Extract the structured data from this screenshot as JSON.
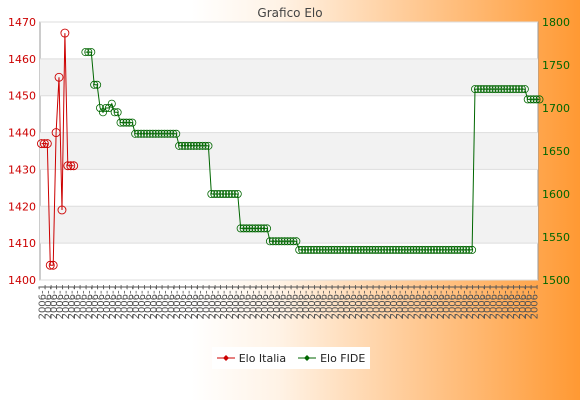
{
  "chart_data": {
    "type": "line",
    "title": "Grafico Elo",
    "xlabel": "",
    "y_left": {
      "ylim": [
        1400,
        1470
      ],
      "ticks": [
        1400,
        1410,
        1420,
        1430,
        1440,
        1450,
        1460,
        1470
      ],
      "color": "#cc0000"
    },
    "y_right": {
      "ylim": [
        1500,
        1800
      ],
      "ticks": [
        1500,
        1550,
        1600,
        1650,
        1700,
        1750,
        1800
      ],
      "color": "#006600"
    },
    "x_count": 170,
    "x_tick_text": "2006-1",
    "grid": true,
    "legend_position": "bottom",
    "series": [
      {
        "name": "Elo Italia",
        "axis": "left",
        "color": "#cc0000",
        "points": [
          [
            0,
            1437
          ],
          [
            1,
            1437
          ],
          [
            2,
            1437
          ],
          [
            3,
            1404
          ],
          [
            4,
            1404
          ],
          [
            5,
            1440
          ],
          [
            6,
            1455
          ],
          [
            7,
            1419
          ],
          [
            8,
            1467
          ],
          [
            9,
            1431
          ],
          [
            10,
            1431
          ],
          [
            11,
            1431
          ]
        ]
      },
      {
        "name": "Elo FIDE",
        "axis": "right",
        "color": "#006600",
        "steps": [
          [
            15,
            17,
            1765
          ],
          [
            18,
            19,
            1727
          ],
          [
            20,
            20,
            1700
          ],
          [
            21,
            21,
            1695
          ],
          [
            22,
            22,
            1700
          ],
          [
            23,
            23,
            1700
          ],
          [
            24,
            24,
            1705
          ],
          [
            25,
            26,
            1695
          ],
          [
            27,
            31,
            1683
          ],
          [
            32,
            46,
            1670
          ],
          [
            47,
            57,
            1656
          ],
          [
            58,
            67,
            1600
          ],
          [
            68,
            77,
            1560
          ],
          [
            78,
            87,
            1545
          ],
          [
            88,
            147,
            1535
          ],
          [
            148,
            165,
            1722
          ],
          [
            166,
            170,
            1710
          ]
        ]
      }
    ]
  }
}
